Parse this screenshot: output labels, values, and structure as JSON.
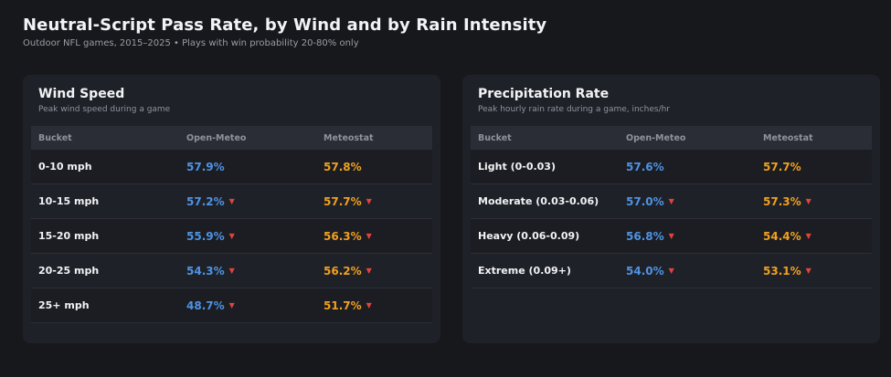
{
  "header": {
    "title": "Neutral-Script Pass Rate, by Wind and by Rain Intensity",
    "subtitle": "Outdoor NFL games, 2015–2025  •  Plays with win probability 20-80% only"
  },
  "colors": {
    "open_meteo": "#4f93e3",
    "meteostat": "#f0a020",
    "down_arrow": "#e0443e"
  },
  "chart_data": [
    {
      "type": "table",
      "title": "Wind Speed",
      "subtitle": "Peak wind speed during a game",
      "columns": [
        "Bucket",
        "Open-Meteo",
        "Meteostat"
      ],
      "rows": [
        {
          "bucket": "0-10 mph",
          "open_meteo": "57.9%",
          "meteostat": "57.8%",
          "down": false
        },
        {
          "bucket": "10-15 mph",
          "open_meteo": "57.2%",
          "meteostat": "57.7%",
          "down": true
        },
        {
          "bucket": "15-20 mph",
          "open_meteo": "55.9%",
          "meteostat": "56.3%",
          "down": true
        },
        {
          "bucket": "20-25 mph",
          "open_meteo": "54.3%",
          "meteostat": "56.2%",
          "down": true
        },
        {
          "bucket": "25+ mph",
          "open_meteo": "48.7%",
          "meteostat": "51.7%",
          "down": true
        }
      ]
    },
    {
      "type": "table",
      "title": "Precipitation Rate",
      "subtitle": "Peak hourly rain rate during a game, inches/hr",
      "columns": [
        "Bucket",
        "Open-Meteo",
        "Meteostat"
      ],
      "rows": [
        {
          "bucket": "Light (0-0.03)",
          "open_meteo": "57.6%",
          "meteostat": "57.7%",
          "down": false
        },
        {
          "bucket": "Moderate (0.03-0.06)",
          "open_meteo": "57.0%",
          "meteostat": "57.3%",
          "down": true
        },
        {
          "bucket": "Heavy (0.06-0.09)",
          "open_meteo": "56.8%",
          "meteostat": "54.4%",
          "down": true
        },
        {
          "bucket": "Extreme (0.09+)",
          "open_meteo": "54.0%",
          "meteostat": "53.1%",
          "down": true
        }
      ]
    }
  ]
}
